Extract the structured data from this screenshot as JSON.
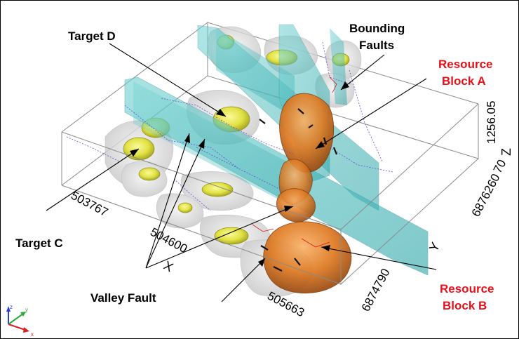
{
  "labels": {
    "target_d": "Target D",
    "target_c": "Target C",
    "bounding_faults_1": "Bounding",
    "bounding_faults_2": "Faults",
    "resource_a_1": "Resource",
    "resource_a_2": "Block A",
    "resource_b_1": "Resource",
    "resource_b_2": "Block B",
    "valley_fault": "Valley Fault"
  },
  "axes": {
    "x_letter": "X",
    "y_letter": "Y",
    "z_letter": "Z",
    "x_ticks": [
      "503767",
      "504600",
      "505663"
    ],
    "y_ticks": [
      "6876260",
      "6874790"
    ],
    "y_tick_suffix": "70",
    "z_tick": "1256.05"
  },
  "triad": {
    "x": "x",
    "y": "y",
    "z": "z"
  },
  "colors": {
    "label_red": "#e8101a",
    "fault_plane": "#2fb5b5",
    "resource": "#e07a20",
    "target": "#e8e84a",
    "outline": "#777777"
  }
}
